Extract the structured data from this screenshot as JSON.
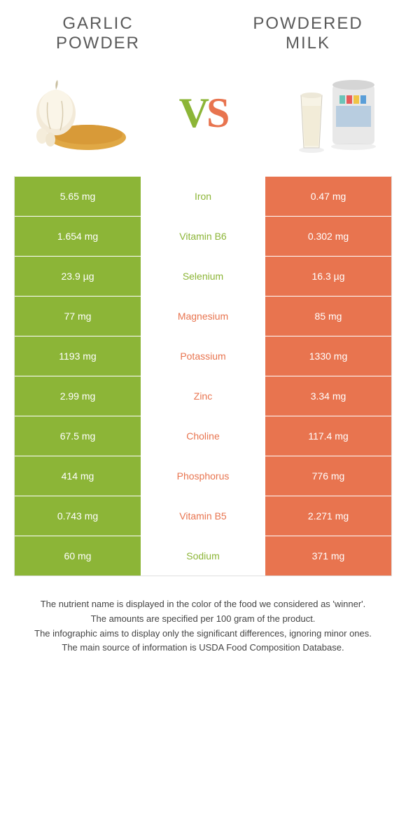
{
  "titles": {
    "left": "GARLIC POWDER",
    "right": "POWDERED MILK"
  },
  "vs": {
    "v": "V",
    "s": "S"
  },
  "colors": {
    "left": "#8cb537",
    "right": "#e8744f",
    "text": "#333333",
    "border": "#e0e0e0"
  },
  "rows": [
    {
      "left": "5.65 mg",
      "mid": "Iron",
      "right": "0.47 mg",
      "winner": "left"
    },
    {
      "left": "1.654 mg",
      "mid": "Vitamin B6",
      "right": "0.302 mg",
      "winner": "left"
    },
    {
      "left": "23.9 µg",
      "mid": "Selenium",
      "right": "16.3 µg",
      "winner": "left"
    },
    {
      "left": "77 mg",
      "mid": "Magnesium",
      "right": "85 mg",
      "winner": "right"
    },
    {
      "left": "1193 mg",
      "mid": "Potassium",
      "right": "1330 mg",
      "winner": "right"
    },
    {
      "left": "2.99 mg",
      "mid": "Zinc",
      "right": "3.34 mg",
      "winner": "right"
    },
    {
      "left": "67.5 mg",
      "mid": "Choline",
      "right": "117.4 mg",
      "winner": "right"
    },
    {
      "left": "414 mg",
      "mid": "Phosphorus",
      "right": "776 mg",
      "winner": "right"
    },
    {
      "left": "0.743 mg",
      "mid": "Vitamin B5",
      "right": "2.271 mg",
      "winner": "right"
    },
    {
      "left": "60 mg",
      "mid": "Sodium",
      "right": "371 mg",
      "winner": "left"
    }
  ],
  "notes": [
    "The nutrient name is displayed in the color of the food we considered as 'winner'.",
    "The amounts are specified per 100 gram of the product.",
    "The infographic aims to display only the significant differences, ignoring minor ones.",
    "The main source of information is USDA Food Composition Database."
  ]
}
